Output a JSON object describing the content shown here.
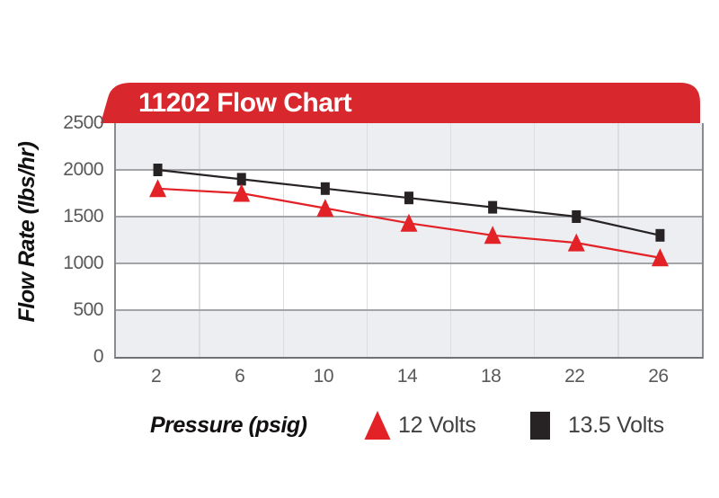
{
  "header": {
    "title": "11202 Flow Chart"
  },
  "colors": {
    "page_bg": "#FFFFFF",
    "banner_red": "#D8272D",
    "title_text": "#FFFFFF",
    "series_red": "#E32227",
    "series_black": "#272324",
    "band_gray": "#ECEEF1",
    "band_white": "#FFFFFF",
    "h_grid": "#A2A4A7",
    "v_grid": "#DBDDE0",
    "plot_border": "#707174",
    "plot_border_side": "#8A8B8E",
    "tick_label": "#58595B",
    "legend_text": "#414042",
    "axis_title": "#131011"
  },
  "chart_data": {
    "type": "line",
    "title": "11202 Flow Chart",
    "xlabel": "Pressure (psig)",
    "ylabel": "Flow Rate (lbs/hr)",
    "categories": [
      2,
      6,
      10,
      14,
      18,
      22,
      26
    ],
    "series": [
      {
        "name": "13.5 Volts",
        "marker": "square",
        "color": "#272324",
        "values": [
          2000,
          1900,
          1800,
          1700,
          1600,
          1500,
          1300
        ]
      },
      {
        "name": "12 Volts",
        "marker": "triangle",
        "color": "#E32227",
        "values": [
          1800,
          1750,
          1590,
          1430,
          1300,
          1220,
          1060
        ]
      }
    ],
    "ylim": [
      0,
      2500
    ],
    "yticks": [
      0,
      500,
      1000,
      1500,
      2000,
      2500
    ],
    "grid": "horizontal-major, vertical-between-categories, alternating-bands",
    "legend_position": "bottom"
  }
}
